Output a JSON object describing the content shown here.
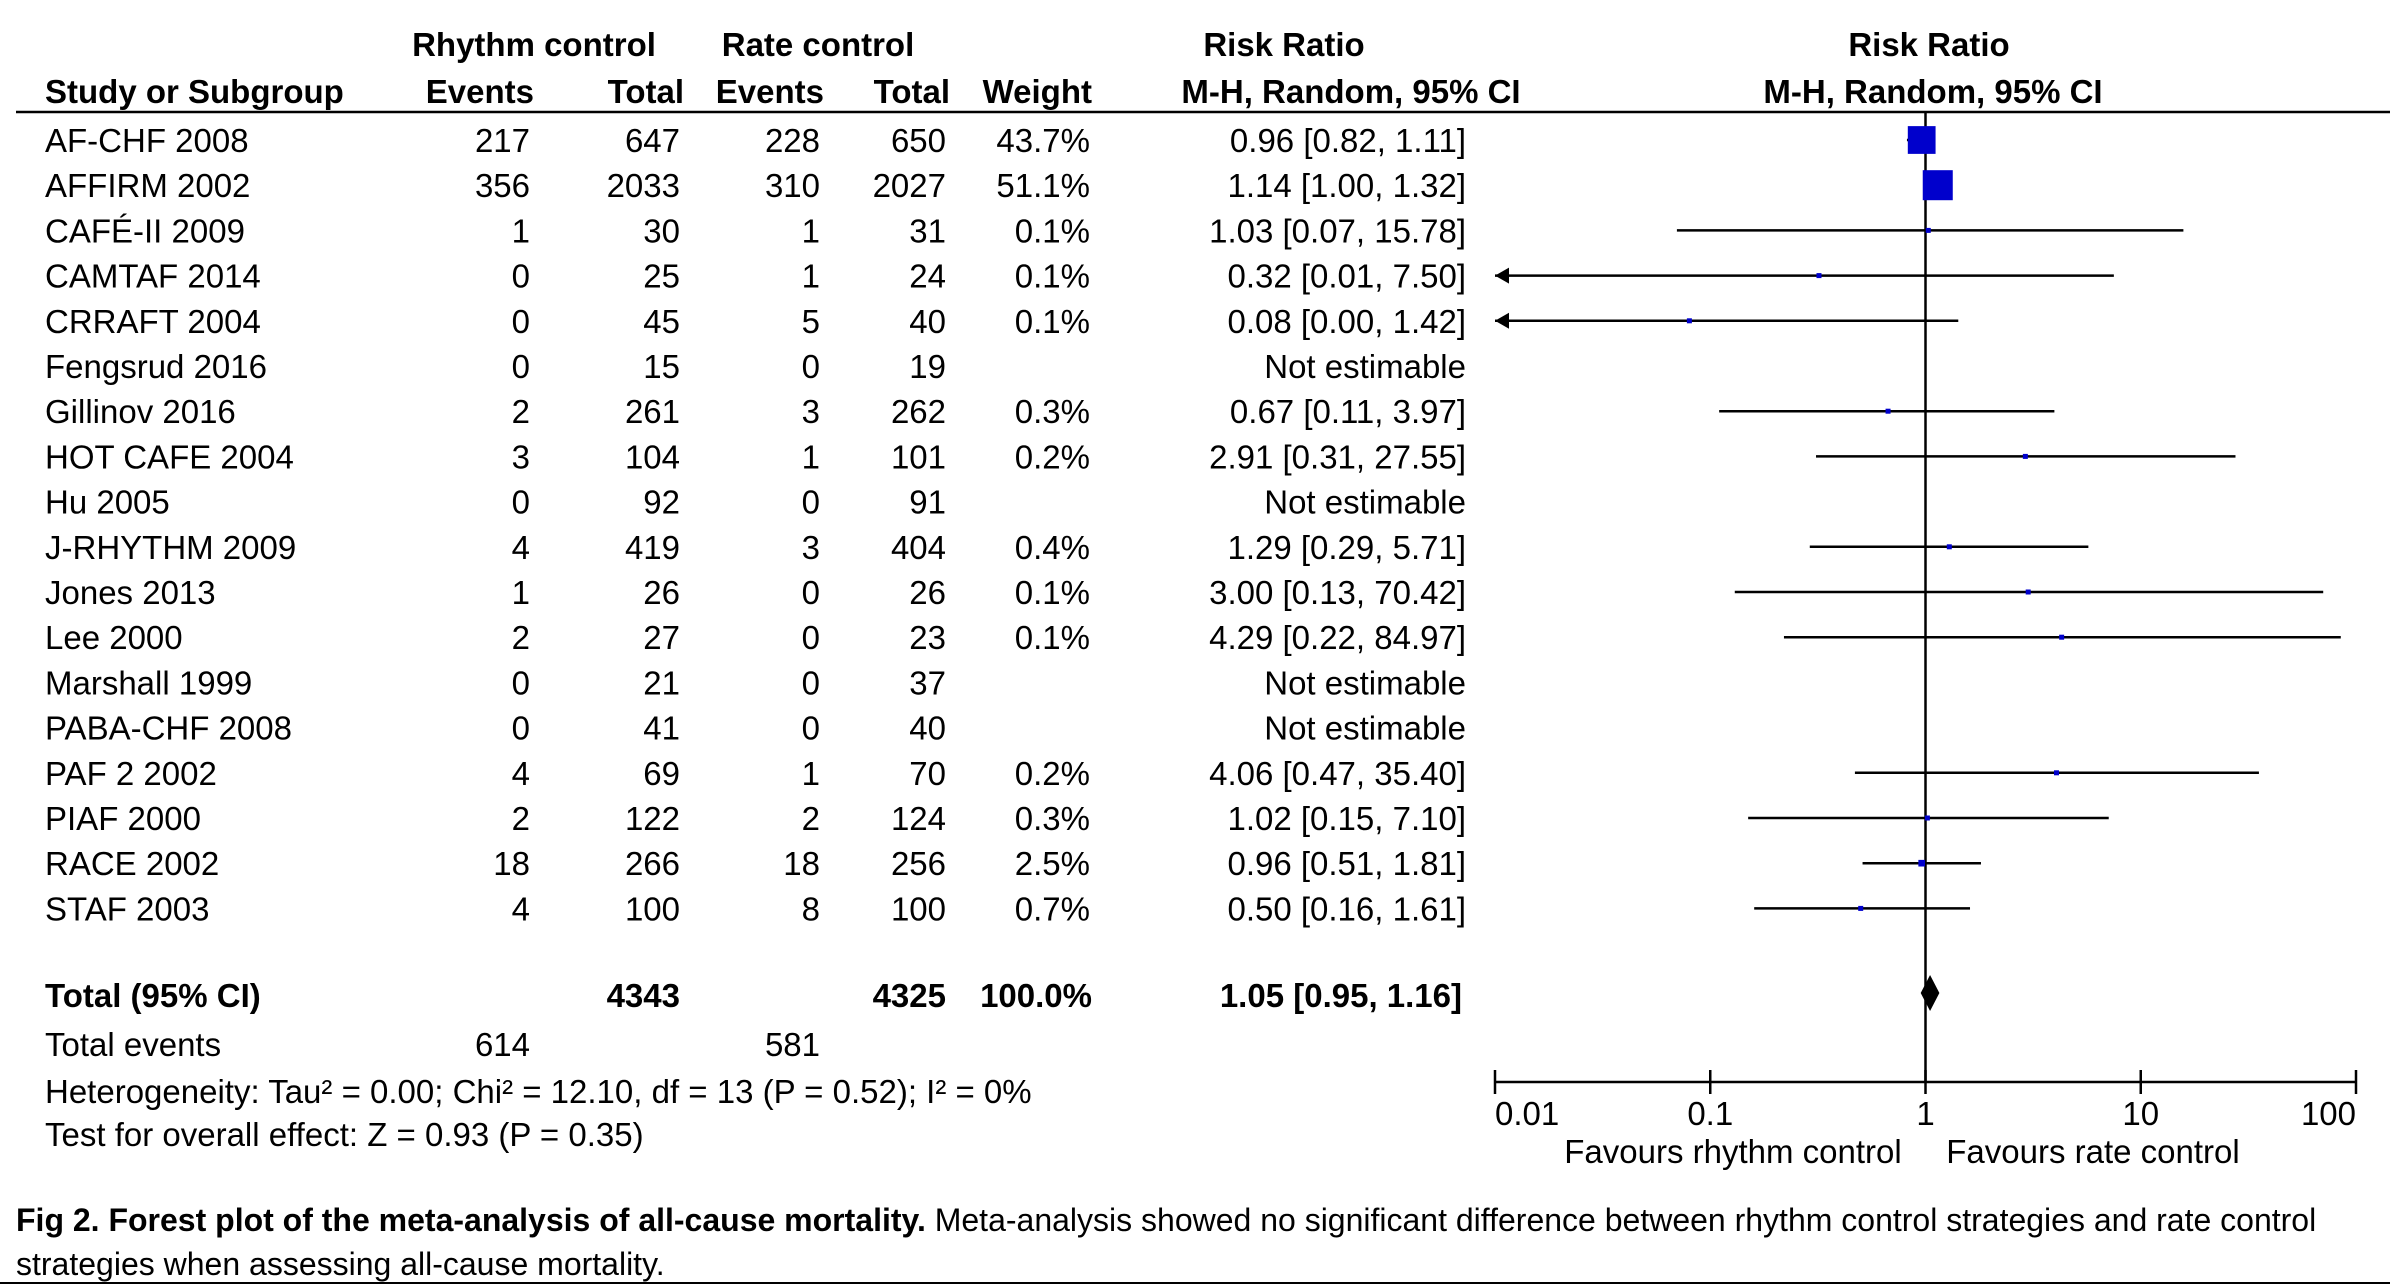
{
  "header": {
    "group_rhythm": "Rhythm control",
    "group_rate": "Rate control",
    "risk_ratio": "Risk Ratio",
    "study": "Study or Subgroup",
    "events": "Events",
    "total": "Total",
    "weight": "Weight",
    "method": "M-H, Random, 95% CI"
  },
  "totals": {
    "label": "Total (95% CI)",
    "rhythm_total": "4343",
    "rate_total": "4325",
    "weight": "100.0%",
    "ci_text": "1.05 [0.95, 1.16]",
    "events_label": "Total events",
    "rhythm_events": "614",
    "rate_events": "581",
    "heterogeneity": "Heterogeneity: Tau² = 0.00; Chi² = 12.10, df = 13 (P = 0.52); I² = 0%",
    "overall_effect": "Test for overall effect: Z = 0.93 (P = 0.35)"
  },
  "caption": {
    "label": "Fig 2.",
    "title": "Forest plot of the meta-analysis of all-cause mortality.",
    "text": "Meta-analysis showed no significant difference between rhythm control strategies and rate control strategies when assessing all-cause mortality."
  },
  "chart_data": {
    "type": "forest",
    "x_scale": "log",
    "xlim": [
      0.01,
      100
    ],
    "ticks": [
      {
        "value": 0.01,
        "label": "0.01"
      },
      {
        "value": 0.1,
        "label": "0.1"
      },
      {
        "value": 1,
        "label": "1"
      },
      {
        "value": 10,
        "label": "10"
      },
      {
        "value": 100,
        "label": "100"
      }
    ],
    "xlabel_left": "Favours rhythm control",
    "xlabel_right": "Favours rate control",
    "colors": {
      "marker": "#0000cc",
      "line": "#000000",
      "diamond": "#000000"
    },
    "studies": [
      {
        "name": "AF-CHF 2008",
        "e1": "217",
        "n1": "647",
        "e2": "228",
        "n2": "650",
        "weight": "43.7%",
        "rr": 0.96,
        "lo": 0.82,
        "hi": 1.11,
        "ci": "0.96 [0.82, 1.11]",
        "w": 43.7
      },
      {
        "name": "AFFIRM 2002",
        "e1": "356",
        "n1": "2033",
        "e2": "310",
        "n2": "2027",
        "weight": "51.1%",
        "rr": 1.14,
        "lo": 1.0,
        "hi": 1.32,
        "ci": "1.14 [1.00, 1.32]",
        "w": 51.1
      },
      {
        "name": "CAFÉ-II 2009",
        "e1": "1",
        "n1": "30",
        "e2": "1",
        "n2": "31",
        "weight": "0.1%",
        "rr": 1.03,
        "lo": 0.07,
        "hi": 15.78,
        "ci": "1.03 [0.07, 15.78]",
        "w": 0.1
      },
      {
        "name": "CAMTAF 2014",
        "e1": "0",
        "n1": "25",
        "e2": "1",
        "n2": "24",
        "weight": "0.1%",
        "rr": 0.32,
        "lo": 0.01,
        "hi": 7.5,
        "ci": "0.32 [0.01, 7.50]",
        "w": 0.1
      },
      {
        "name": "CRRAFT 2004",
        "e1": "0",
        "n1": "45",
        "e2": "5",
        "n2": "40",
        "weight": "0.1%",
        "rr": 0.08,
        "lo": 0.0,
        "hi": 1.42,
        "ci": "0.08 [0.00, 1.42]",
        "w": 0.1
      },
      {
        "name": "Fengsrud 2016",
        "e1": "0",
        "n1": "15",
        "e2": "0",
        "n2": "19",
        "weight": "",
        "rr": null,
        "lo": null,
        "hi": null,
        "ci": "Not estimable",
        "w": 0
      },
      {
        "name": "Gillinov 2016",
        "e1": "2",
        "n1": "261",
        "e2": "3",
        "n2": "262",
        "weight": "0.3%",
        "rr": 0.67,
        "lo": 0.11,
        "hi": 3.97,
        "ci": "0.67 [0.11, 3.97]",
        "w": 0.3
      },
      {
        "name": "HOT CAFE 2004",
        "e1": "3",
        "n1": "104",
        "e2": "1",
        "n2": "101",
        "weight": "0.2%",
        "rr": 2.91,
        "lo": 0.31,
        "hi": 27.55,
        "ci": "2.91 [0.31, 27.55]",
        "w": 0.2
      },
      {
        "name": "Hu 2005",
        "e1": "0",
        "n1": "92",
        "e2": "0",
        "n2": "91",
        "weight": "",
        "rr": null,
        "lo": null,
        "hi": null,
        "ci": "Not estimable",
        "w": 0
      },
      {
        "name": "J-RHYTHM 2009",
        "e1": "4",
        "n1": "419",
        "e2": "3",
        "n2": "404",
        "weight": "0.4%",
        "rr": 1.29,
        "lo": 0.29,
        "hi": 5.71,
        "ci": "1.29 [0.29, 5.71]",
        "w": 0.4
      },
      {
        "name": "Jones 2013",
        "e1": "1",
        "n1": "26",
        "e2": "0",
        "n2": "26",
        "weight": "0.1%",
        "rr": 3.0,
        "lo": 0.13,
        "hi": 70.42,
        "ci": "3.00 [0.13, 70.42]",
        "w": 0.1
      },
      {
        "name": "Lee 2000",
        "e1": "2",
        "n1": "27",
        "e2": "0",
        "n2": "23",
        "weight": "0.1%",
        "rr": 4.29,
        "lo": 0.22,
        "hi": 84.97,
        "ci": "4.29 [0.22, 84.97]",
        "w": 0.1
      },
      {
        "name": "Marshall 1999",
        "e1": "0",
        "n1": "21",
        "e2": "0",
        "n2": "37",
        "weight": "",
        "rr": null,
        "lo": null,
        "hi": null,
        "ci": "Not estimable",
        "w": 0
      },
      {
        "name": "PABA-CHF 2008",
        "e1": "0",
        "n1": "41",
        "e2": "0",
        "n2": "40",
        "weight": "",
        "rr": null,
        "lo": null,
        "hi": null,
        "ci": "Not estimable",
        "w": 0
      },
      {
        "name": "PAF 2 2002",
        "e1": "4",
        "n1": "69",
        "e2": "1",
        "n2": "70",
        "weight": "0.2%",
        "rr": 4.06,
        "lo": 0.47,
        "hi": 35.4,
        "ci": "4.06 [0.47, 35.40]",
        "w": 0.2
      },
      {
        "name": "PIAF 2000",
        "e1": "2",
        "n1": "122",
        "e2": "2",
        "n2": "124",
        "weight": "0.3%",
        "rr": 1.02,
        "lo": 0.15,
        "hi": 7.1,
        "ci": "1.02 [0.15, 7.10]",
        "w": 0.3
      },
      {
        "name": "RACE 2002",
        "e1": "18",
        "n1": "266",
        "e2": "18",
        "n2": "256",
        "weight": "2.5%",
        "rr": 0.96,
        "lo": 0.51,
        "hi": 1.81,
        "ci": "0.96 [0.51, 1.81]",
        "w": 2.5
      },
      {
        "name": "STAF 2003",
        "e1": "4",
        "n1": "100",
        "e2": "8",
        "n2": "100",
        "weight": "0.7%",
        "rr": 0.5,
        "lo": 0.16,
        "hi": 1.61,
        "ci": "0.50 [0.16, 1.61]",
        "w": 0.7
      }
    ],
    "pooled": {
      "rr": 1.05,
      "lo": 0.95,
      "hi": 1.16
    }
  }
}
